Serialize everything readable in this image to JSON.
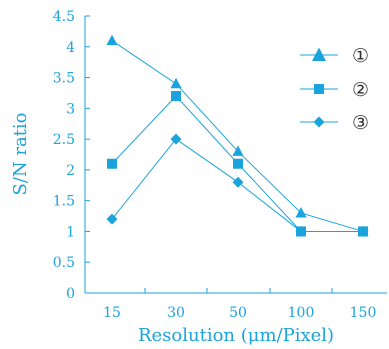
{
  "colors": {
    "series": "#1aa3dc",
    "axis": "#1aa3dc",
    "text": "#1aa3dc"
  },
  "chart_data": {
    "type": "line",
    "title": "",
    "xlabel": "Resolution (μm/Pixel)",
    "ylabel": "S/N ratio",
    "categories": [
      "15",
      "30",
      "50",
      "100",
      "150"
    ],
    "yticks": [
      "0",
      "0.5",
      "1",
      "1.5",
      "2",
      "2.5",
      "3",
      "3.5",
      "4",
      "4.5"
    ],
    "ylim": [
      0,
      4.5
    ],
    "grid": false,
    "legend_position": "top-right",
    "series": [
      {
        "name": "①",
        "marker": "triangle",
        "values": [
          4.1,
          3.4,
          2.3,
          1.3,
          1.0
        ]
      },
      {
        "name": "②",
        "marker": "square",
        "values": [
          2.1,
          3.2,
          2.1,
          1.0,
          1.0
        ]
      },
      {
        "name": "③",
        "marker": "diamond",
        "values": [
          1.2,
          2.5,
          1.8,
          1.0,
          1.0
        ]
      }
    ]
  }
}
